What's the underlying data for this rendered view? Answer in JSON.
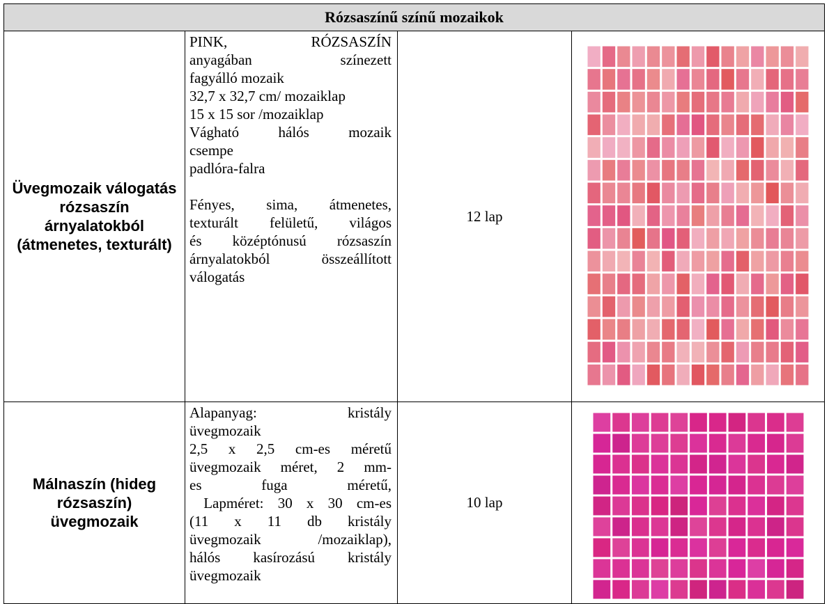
{
  "table": {
    "title": "Rózsaszínű színű mozaikok",
    "rows": [
      {
        "name": "Üvegmozaik válogatás rózsaszín árnyalatokból (átmenetes, texturált)",
        "description": [
          [
            [
              "PINK, RÓZSASZÍN",
              "anyagában színezett",
              "fagyálló mozaik"
            ],
            [
              "32,7 x 32,7 cm/ mozaiklap"
            ],
            [
              "15 x 15 sor /mozaiklap"
            ],
            [
              "Vágható hálós mozaik",
              "csempe"
            ],
            [
              "padlóra-falra"
            ]
          ],
          [
            [
              "Fényes, sima, átmenetes,",
              "texturált felületű, világos",
              "és középtónusú rózsaszín",
              "árnyalatokból összeállított",
              "válogatás"
            ]
          ]
        ],
        "quantity": "12 lap"
      },
      {
        "name": "Málnaszín (hideg rózsaszín) üvegmozaik",
        "description": [
          [
            [
              "Alapanyag: kristály",
              "üvegmozaik"
            ],
            [
              "2,5 x 2,5 cm-es méretű",
              "üvegmozaik méret, 2 mm-",
              "es fuga méretű,",
              " Lapméret: 30 x 30 cm-es",
              "(11 x 11 db kristály",
              "üvegmozaik /mozaiklap),",
              "hálós kasírozású kristály",
              "üvegmozaik"
            ]
          ]
        ],
        "quantity": "10 lap"
      }
    ]
  }
}
